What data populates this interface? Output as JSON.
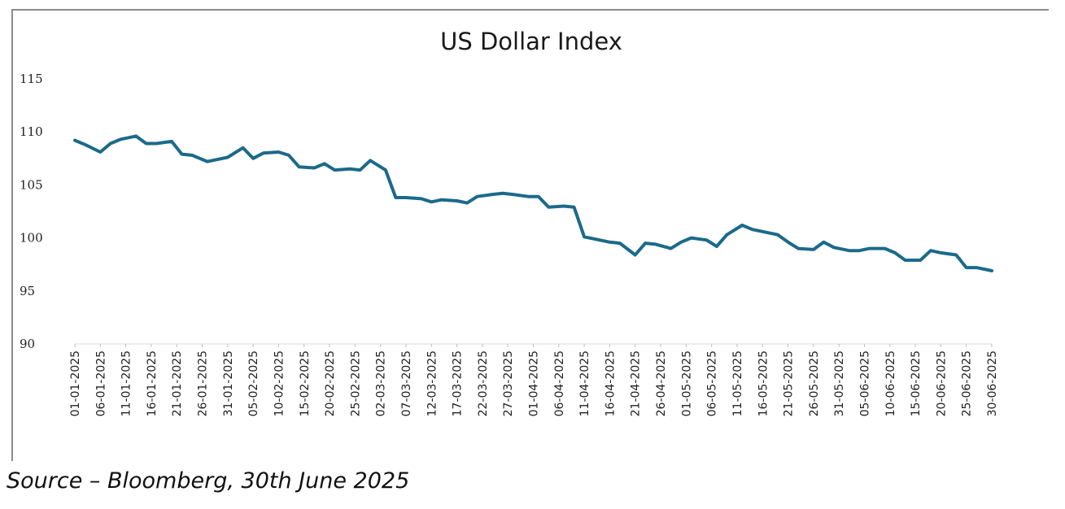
{
  "source_note": "Source – Bloomberg, 30th June 2025",
  "chart_data": {
    "type": "line",
    "title": "US Dollar Index",
    "ylim": [
      90,
      115
    ],
    "yticks": [
      90,
      95,
      100,
      105,
      110,
      115
    ],
    "xlabel": "",
    "ylabel": "",
    "grid": false,
    "legend": "none",
    "line_color": "#1b6a8a",
    "x_tick_labels": [
      "01-01-2025",
      "06-01-2025",
      "11-01-2025",
      "16-01-2025",
      "21-01-2025",
      "26-01-2025",
      "31-01-2025",
      "05-02-2025",
      "10-02-2025",
      "15-02-2025",
      "20-02-2025",
      "25-02-2025",
      "02-03-2025",
      "07-03-2025",
      "12-03-2025",
      "17-03-2025",
      "22-03-2025",
      "27-03-2025",
      "01-04-2025",
      "06-04-2025",
      "11-04-2025",
      "16-04-2025",
      "21-04-2025",
      "26-04-2025",
      "01-05-2025",
      "06-05-2025",
      "11-05-2025",
      "16-05-2025",
      "21-05-2025",
      "26-05-2025",
      "31-05-2025",
      "05-06-2025",
      "10-06-2025",
      "15-06-2025",
      "20-06-2025",
      "25-06-2025",
      "30-06-2025"
    ],
    "x": [
      "01-01-2025",
      "03-01-2025",
      "06-01-2025",
      "08-01-2025",
      "10-01-2025",
      "13-01-2025",
      "15-01-2025",
      "17-01-2025",
      "20-01-2025",
      "22-01-2025",
      "24-01-2025",
      "27-01-2025",
      "29-01-2025",
      "31-01-2025",
      "03-02-2025",
      "05-02-2025",
      "07-02-2025",
      "10-02-2025",
      "12-02-2025",
      "14-02-2025",
      "17-02-2025",
      "19-02-2025",
      "21-02-2025",
      "24-02-2025",
      "26-02-2025",
      "28-02-2025",
      "03-03-2025",
      "05-03-2025",
      "07-03-2025",
      "10-03-2025",
      "12-03-2025",
      "14-03-2025",
      "17-03-2025",
      "19-03-2025",
      "21-03-2025",
      "24-03-2025",
      "26-03-2025",
      "28-03-2025",
      "31-03-2025",
      "02-04-2025",
      "04-04-2025",
      "07-04-2025",
      "09-04-2025",
      "11-04-2025",
      "14-04-2025",
      "16-04-2025",
      "18-04-2025",
      "21-04-2025",
      "23-04-2025",
      "25-04-2025",
      "28-04-2025",
      "30-04-2025",
      "02-05-2025",
      "05-05-2025",
      "07-05-2025",
      "09-05-2025",
      "12-05-2025",
      "14-05-2025",
      "16-05-2025",
      "19-05-2025",
      "21-05-2025",
      "23-05-2025",
      "26-05-2025",
      "28-05-2025",
      "30-05-2025",
      "02-06-2025",
      "04-06-2025",
      "06-06-2025",
      "09-06-2025",
      "11-06-2025",
      "13-06-2025",
      "16-06-2025",
      "18-06-2025",
      "20-06-2025",
      "23-06-2025",
      "25-06-2025",
      "27-06-2025",
      "30-06-2025"
    ],
    "series": [
      {
        "values": [
          109.2,
          108.8,
          108.1,
          108.9,
          109.3,
          109.6,
          108.9,
          108.9,
          109.1,
          107.9,
          107.8,
          107.2,
          107.4,
          107.6,
          108.5,
          107.5,
          108.0,
          108.1,
          107.8,
          106.7,
          106.6,
          107.0,
          106.4,
          106.5,
          106.4,
          107.3,
          106.4,
          103.8,
          103.8,
          103.7,
          103.4,
          103.6,
          103.5,
          103.3,
          103.9,
          104.1,
          104.2,
          104.1,
          103.9,
          103.9,
          102.9,
          103.0,
          102.9,
          100.1,
          99.8,
          99.6,
          99.5,
          98.4,
          99.5,
          99.4,
          99.0,
          99.6,
          100.0,
          99.8,
          99.2,
          100.3,
          101.2,
          100.8,
          100.6,
          100.3,
          99.6,
          99.0,
          98.9,
          99.6,
          99.1,
          98.8,
          98.8,
          99.0,
          99.0,
          98.6,
          97.9,
          97.9,
          98.8,
          98.6,
          98.4,
          97.2,
          97.2,
          96.9
        ]
      }
    ]
  }
}
